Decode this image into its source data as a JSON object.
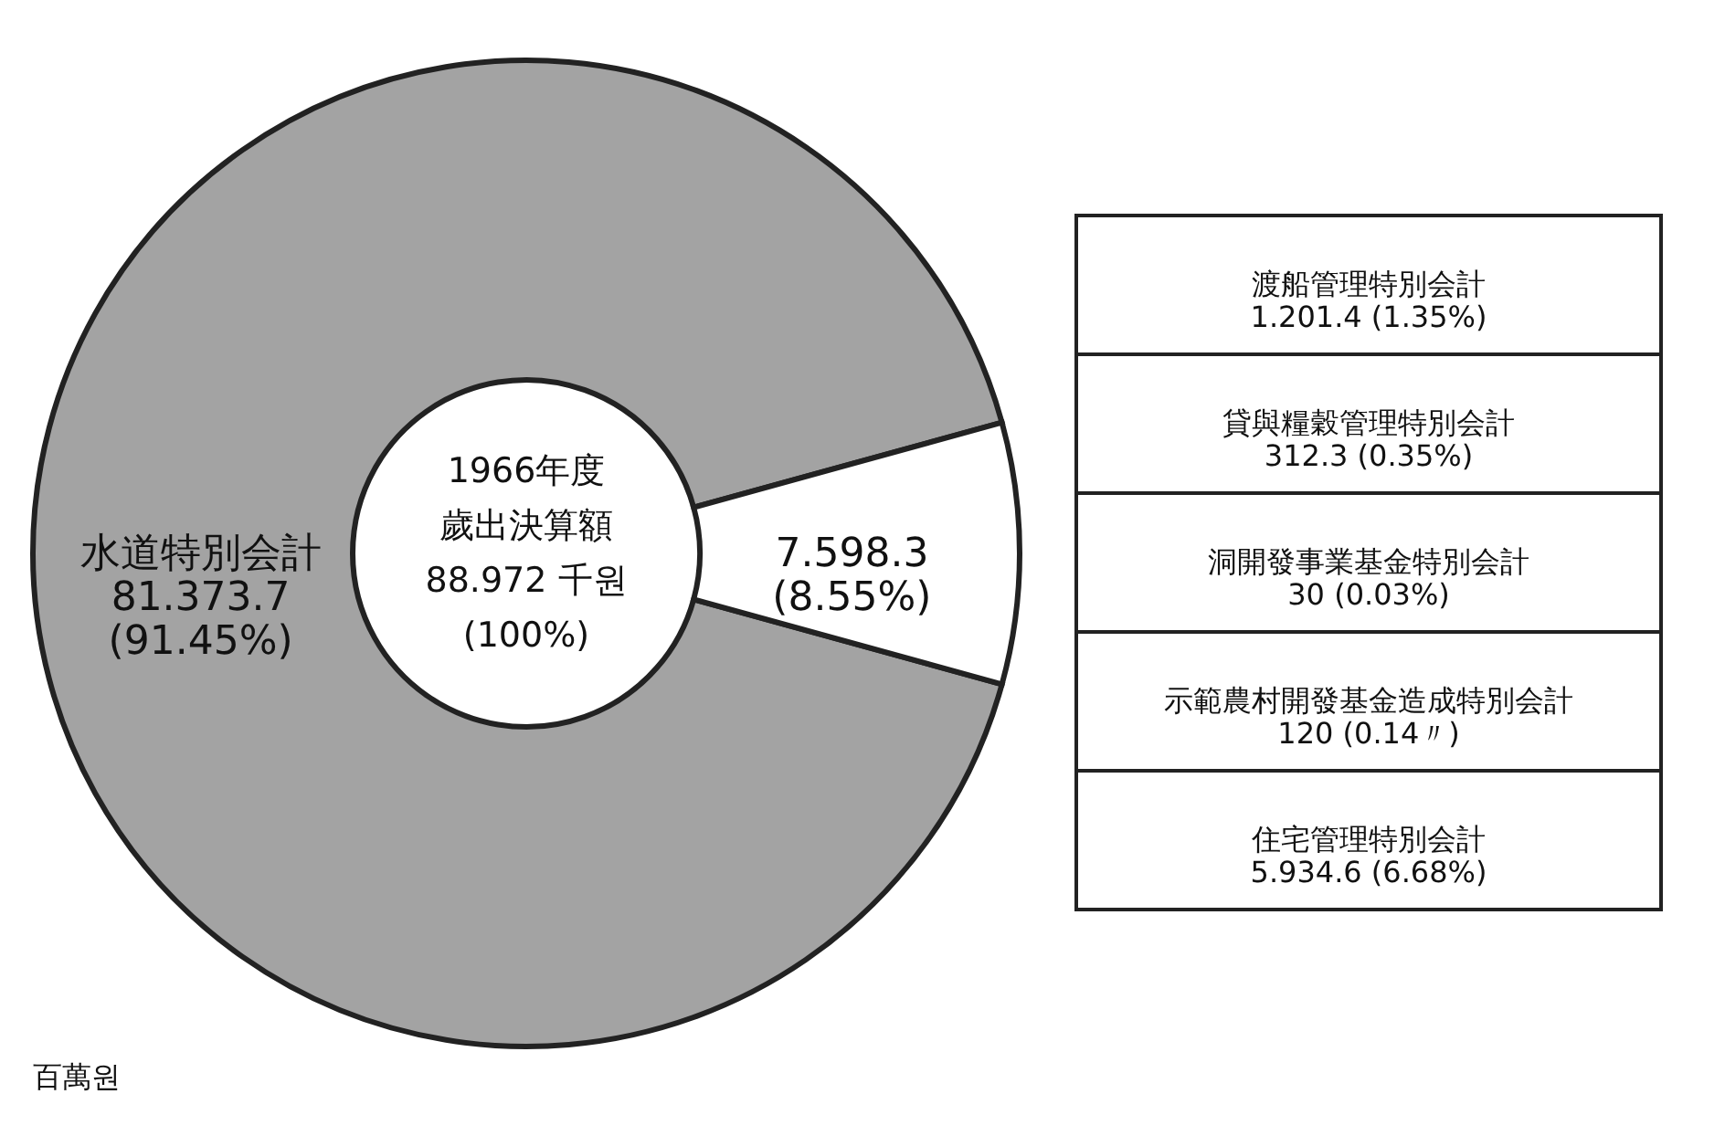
{
  "chart_data": [
    {
      "type": "donut",
      "categories": [
        "水道特別会計",
        null
      ],
      "values": [
        91.45,
        8.55
      ],
      "colors": [
        "#a3a3a3",
        "#ffffff"
      ],
      "value_labels": [
        "81.373.7\n(91.45%)",
        "7.598.3\n(8.55%)"
      ],
      "annotations": [
        "1966年度",
        "歲出決算額",
        "88.972 千원",
        "(100%)",
        "百萬원"
      ]
    },
    {
      "type": "other",
      "categories": [
        "渡船管理特別会計",
        "貸與糧穀管理特別会計",
        "洞開發事業基金特別会計",
        "示範農村開發基金造成特別会計",
        "住宅管理特別会計"
      ],
      "values": [
        1.35,
        0.35,
        0.03,
        0.14,
        6.68
      ],
      "value_labels": [
        "1.201.4 (1.35%)",
        "312.3 (0.35%)",
        "30 (0.03%)",
        "120 (0.14〃)",
        "5.934.6 (6.68%)"
      ]
    }
  ]
}
